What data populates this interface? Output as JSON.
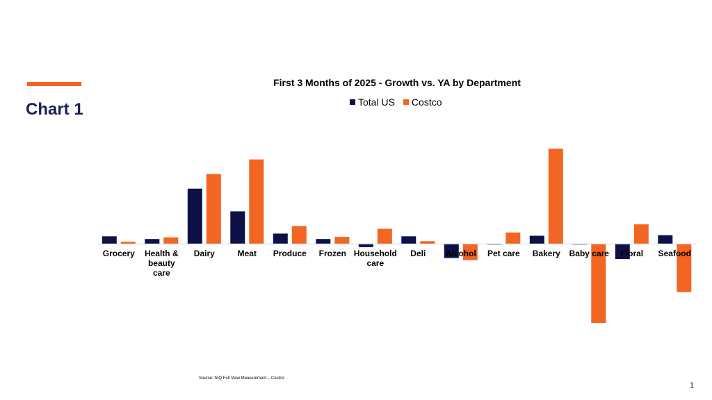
{
  "slide": {
    "title": "Chart 1",
    "source": "Source: NIQ Full View Measurement – Costco",
    "page_number": "1"
  },
  "colors": {
    "accent": "#F26522",
    "navy": "#0D1148",
    "title_navy": "#1B1F5E"
  },
  "chart_data": {
    "type": "bar",
    "title": "First 3 Months of 2025 - Growth vs. YA by Department",
    "xlabel": "",
    "ylabel": "",
    "categories": [
      "Grocery",
      "Health & beauty care",
      "Dairy",
      "Meat",
      "Produce",
      "Frozen",
      "Household care",
      "Deli",
      "Alcohol",
      "Pet care",
      "Bakery",
      "Baby care",
      "Floral",
      "Seafood"
    ],
    "series": [
      {
        "name": "Total US",
        "color": "#0D1148",
        "values": [
          1.4,
          0.9,
          10.2,
          6.0,
          1.9,
          0.9,
          -0.6,
          1.4,
          -2.6,
          -0.1,
          1.5,
          -0.1,
          -2.8,
          1.6
        ]
      },
      {
        "name": "Costco",
        "color": "#F26522",
        "values": [
          0.4,
          1.2,
          12.9,
          15.6,
          3.3,
          1.3,
          2.8,
          0.5,
          -3.0,
          2.1,
          17.6,
          -14.6,
          3.6,
          -8.9
        ]
      }
    ],
    "ylim": [
      -15.5,
      18.5
    ],
    "grid": false,
    "legend": "top-center"
  }
}
